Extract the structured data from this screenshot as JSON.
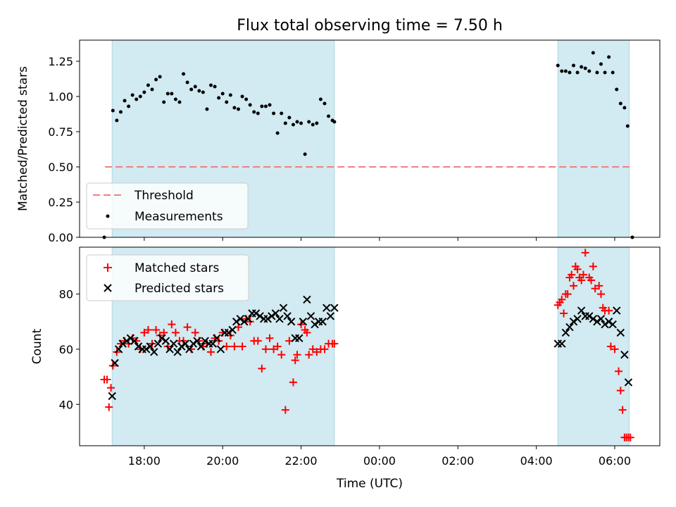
{
  "chart_data": {
    "title": "Flux total observing time = 7.50 h",
    "xlabel": "Time (UTC)",
    "x_unit": "hours after 00:00 UTC on the first night",
    "xlim": [
      16.35,
      31.15
    ],
    "x_ticks": [
      {
        "label": "18:00",
        "x": 18
      },
      {
        "label": "20:00",
        "x": 20
      },
      {
        "label": "22:00",
        "x": 22
      },
      {
        "label": "00:00",
        "x": 24
      },
      {
        "label": "02:00",
        "x": 26
      },
      {
        "label": "04:00",
        "x": 28
      },
      {
        "label": "06:00",
        "x": 30
      }
    ],
    "shaded_regions": [
      [
        17.18,
        22.85
      ],
      [
        28.55,
        30.37
      ]
    ],
    "shade_color": "#add8e6",
    "panels": [
      {
        "type": "scatter",
        "ylabel": "Matched/Predicted stars",
        "ylim": [
          0,
          1.4
        ],
        "yticks": [
          "0.00",
          "0.25",
          "0.50",
          "0.75",
          "1.00",
          "1.25"
        ],
        "threshold": {
          "name": "Threshold",
          "value": 0.5,
          "x_range": [
            17.0,
            30.45
          ],
          "color": "#f08080"
        },
        "legend": {
          "placement": "lower-left",
          "entries": [
            "Threshold",
            "Measurements"
          ]
        },
        "series": [
          {
            "name": "Measurements",
            "marker": "dot",
            "color": "#000000",
            "x": [
              16.98,
              17.2,
              17.3,
              17.4,
              17.5,
              17.6,
              17.7,
              17.8,
              17.9,
              18.0,
              18.1,
              18.2,
              18.3,
              18.4,
              18.5,
              18.6,
              18.7,
              18.8,
              18.9,
              19.0,
              19.1,
              19.2,
              19.3,
              19.4,
              19.5,
              19.6,
              19.7,
              19.8,
              19.9,
              20.0,
              20.1,
              20.2,
              20.3,
              20.4,
              20.5,
              20.6,
              20.7,
              20.8,
              20.9,
              21.0,
              21.1,
              21.2,
              21.3,
              21.4,
              21.5,
              21.6,
              21.7,
              21.8,
              21.9,
              22.0,
              22.1,
              22.2,
              22.3,
              22.4,
              22.5,
              22.6,
              22.7,
              22.8,
              22.85,
              28.55,
              28.65,
              28.75,
              28.85,
              28.95,
              29.05,
              29.15,
              29.25,
              29.35,
              29.45,
              29.55,
              29.65,
              29.75,
              29.85,
              29.95,
              30.05,
              30.15,
              30.25,
              30.33,
              30.45
            ],
            "y": [
              0.0,
              0.9,
              0.83,
              0.89,
              0.97,
              0.93,
              1.01,
              0.98,
              1.0,
              1.03,
              1.08,
              1.05,
              1.12,
              1.14,
              0.96,
              1.02,
              1.02,
              0.98,
              0.96,
              1.16,
              1.1,
              1.05,
              1.07,
              1.04,
              1.03,
              0.91,
              1.08,
              1.07,
              0.99,
              1.02,
              0.96,
              1.01,
              0.92,
              0.91,
              1.0,
              0.98,
              0.94,
              0.89,
              0.88,
              0.93,
              0.93,
              0.94,
              0.88,
              0.74,
              0.88,
              0.81,
              0.85,
              0.8,
              0.82,
              0.81,
              0.59,
              0.82,
              0.8,
              0.81,
              0.98,
              0.95,
              0.86,
              0.83,
              0.82,
              1.22,
              1.18,
              1.18,
              1.17,
              1.22,
              1.17,
              1.21,
              1.2,
              1.18,
              1.31,
              1.17,
              1.23,
              1.17,
              1.28,
              1.17,
              1.05,
              0.95,
              0.92,
              0.79,
              0.0
            ]
          }
        ]
      },
      {
        "type": "scatter",
        "ylabel": "Count",
        "ylim": [
          25,
          97
        ],
        "yticks": [
          "40",
          "60",
          "80"
        ],
        "legend": {
          "placement": "upper-left",
          "entries": [
            "Matched stars",
            "Predicted stars"
          ]
        },
        "series": [
          {
            "name": "Matched stars",
            "marker": "plus",
            "color": "#ff0000",
            "x": [
              16.98,
              17.05,
              17.1,
              17.15,
              17.2,
              17.3,
              17.4,
              17.5,
              17.6,
              17.7,
              17.8,
              17.9,
              18.0,
              18.1,
              18.2,
              18.3,
              18.4,
              18.5,
              18.6,
              18.7,
              18.8,
              18.9,
              19.0,
              19.1,
              19.2,
              19.3,
              19.4,
              19.5,
              19.6,
              19.7,
              19.8,
              19.9,
              20.0,
              20.1,
              20.2,
              20.3,
              20.4,
              20.5,
              20.6,
              20.7,
              20.8,
              20.9,
              21.0,
              21.1,
              21.2,
              21.3,
              21.4,
              21.5,
              21.6,
              21.7,
              21.8,
              21.85,
              21.9,
              22.0,
              22.1,
              22.15,
              22.2,
              22.3,
              22.4,
              22.5,
              22.6,
              22.7,
              22.8,
              22.85,
              28.55,
              28.6,
              28.65,
              28.7,
              28.75,
              28.8,
              28.85,
              28.9,
              28.95,
              29.0,
              29.05,
              29.1,
              29.15,
              29.2,
              29.25,
              29.35,
              29.4,
              29.45,
              29.5,
              29.6,
              29.65,
              29.7,
              29.75,
              29.85,
              29.9,
              30.0,
              30.1,
              30.15,
              30.2,
              30.25,
              30.3,
              30.35,
              30.4
            ],
            "y": [
              49,
              49,
              39,
              46,
              54,
              59,
              62,
              63,
              62,
              64,
              63,
              60,
              66,
              67,
              62,
              67,
              65,
              66,
              61,
              69,
              66,
              63,
              63,
              68,
              60,
              66,
              63,
              61,
              62,
              59,
              64,
              63,
              66,
              61,
              65,
              61,
              68,
              61,
              71,
              70,
              63,
              63,
              53,
              60,
              64,
              60,
              61,
              58,
              38,
              63,
              48,
              56,
              58,
              69,
              67,
              66,
              58,
              60,
              59,
              60,
              60,
              62,
              62,
              62,
              76,
              77,
              78,
              73,
              80,
              80,
              86,
              87,
              83,
              90,
              89,
              86,
              85,
              87,
              95,
              86,
              85,
              90,
              82,
              83,
              80,
              75,
              74,
              74,
              61,
              60,
              52,
              45,
              38,
              28,
              28,
              28,
              28
            ]
          },
          {
            "name": "Predicted stars",
            "marker": "x",
            "color": "#000000",
            "x": [
              17.18,
              17.25,
              17.35,
              17.45,
              17.55,
              17.65,
              17.75,
              17.85,
              17.95,
              18.05,
              18.15,
              18.25,
              18.35,
              18.45,
              18.55,
              18.65,
              18.75,
              18.85,
              18.95,
              19.05,
              19.15,
              19.25,
              19.35,
              19.45,
              19.55,
              19.65,
              19.75,
              19.85,
              19.95,
              20.05,
              20.15,
              20.25,
              20.35,
              20.45,
              20.55,
              20.65,
              20.75,
              20.85,
              20.95,
              21.05,
              21.15,
              21.25,
              21.35,
              21.45,
              21.55,
              21.65,
              21.75,
              21.85,
              21.95,
              22.05,
              22.15,
              22.25,
              22.35,
              22.45,
              22.55,
              22.65,
              22.75,
              22.85,
              28.55,
              28.65,
              28.75,
              28.85,
              28.95,
              29.05,
              29.15,
              29.25,
              29.35,
              29.45,
              29.55,
              29.65,
              29.75,
              29.85,
              29.95,
              30.05,
              30.15,
              30.25,
              30.35
            ],
            "y": [
              43,
              55,
              60,
              62,
              63,
              64,
              63,
              61,
              60,
              60,
              61,
              59,
              62,
              64,
              63,
              60,
              62,
              59,
              61,
              62,
              60,
              62,
              63,
              61,
              63,
              62,
              62,
              64,
              60,
              66,
              66,
              67,
              70,
              71,
              70,
              71,
              73,
              73,
              72,
              71,
              71,
              72,
              73,
              71,
              75,
              72,
              70,
              64,
              64,
              70,
              78,
              72,
              69,
              70,
              70,
              75,
              72,
              75,
              62,
              62,
              66,
              68,
              70,
              71,
              74,
              72,
              72,
              71,
              70,
              71,
              69,
              70,
              69,
              74,
              66,
              58,
              48
            ]
          }
        ]
      }
    ]
  }
}
